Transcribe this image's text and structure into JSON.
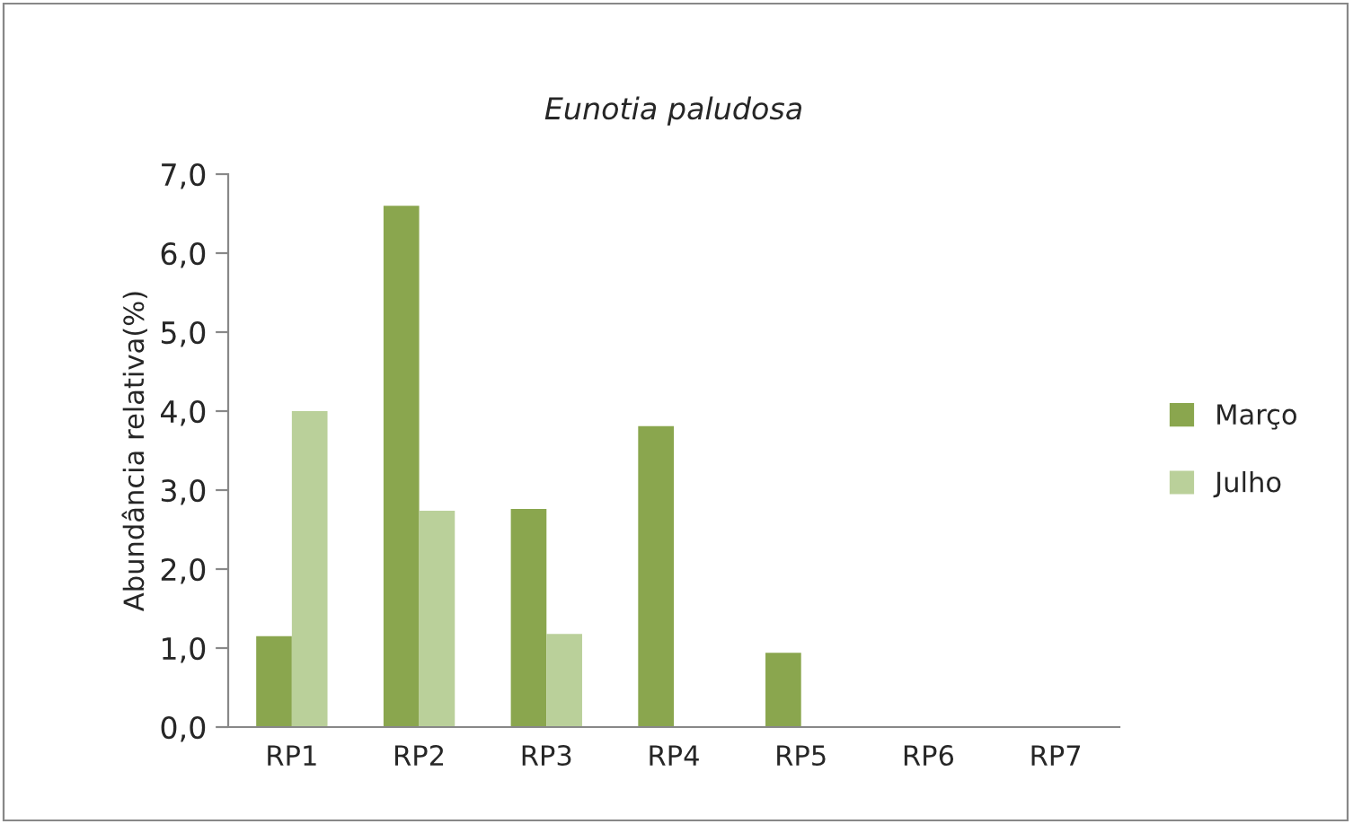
{
  "chart_data": {
    "type": "bar",
    "title": "Eunotia paludosa",
    "ylabel": "Abundância relativa(%)",
    "categories": [
      "RP1",
      "RP2",
      "RP3",
      "RP4",
      "RP5",
      "RP6",
      "RP7"
    ],
    "series": [
      {
        "name": "Março",
        "color": "#8aa64e",
        "values": [
          1.15,
          6.6,
          2.76,
          3.81,
          0.94,
          null,
          null
        ]
      },
      {
        "name": "Julho",
        "color": "#bad09a",
        "values": [
          4.0,
          2.74,
          1.18,
          null,
          null,
          null,
          null
        ]
      }
    ],
    "ylim": [
      0,
      7
    ],
    "yticks": [
      {
        "value": 0,
        "label": "0,0"
      },
      {
        "value": 1,
        "label": "1,0"
      },
      {
        "value": 2,
        "label": "2,0"
      },
      {
        "value": 3,
        "label": "3,0"
      },
      {
        "value": 4,
        "label": "4,0"
      },
      {
        "value": 5,
        "label": "5,0"
      },
      {
        "value": 6,
        "label": "6,0"
      },
      {
        "value": 7,
        "label": "7,0"
      }
    ],
    "grid": false,
    "legend": "right"
  }
}
